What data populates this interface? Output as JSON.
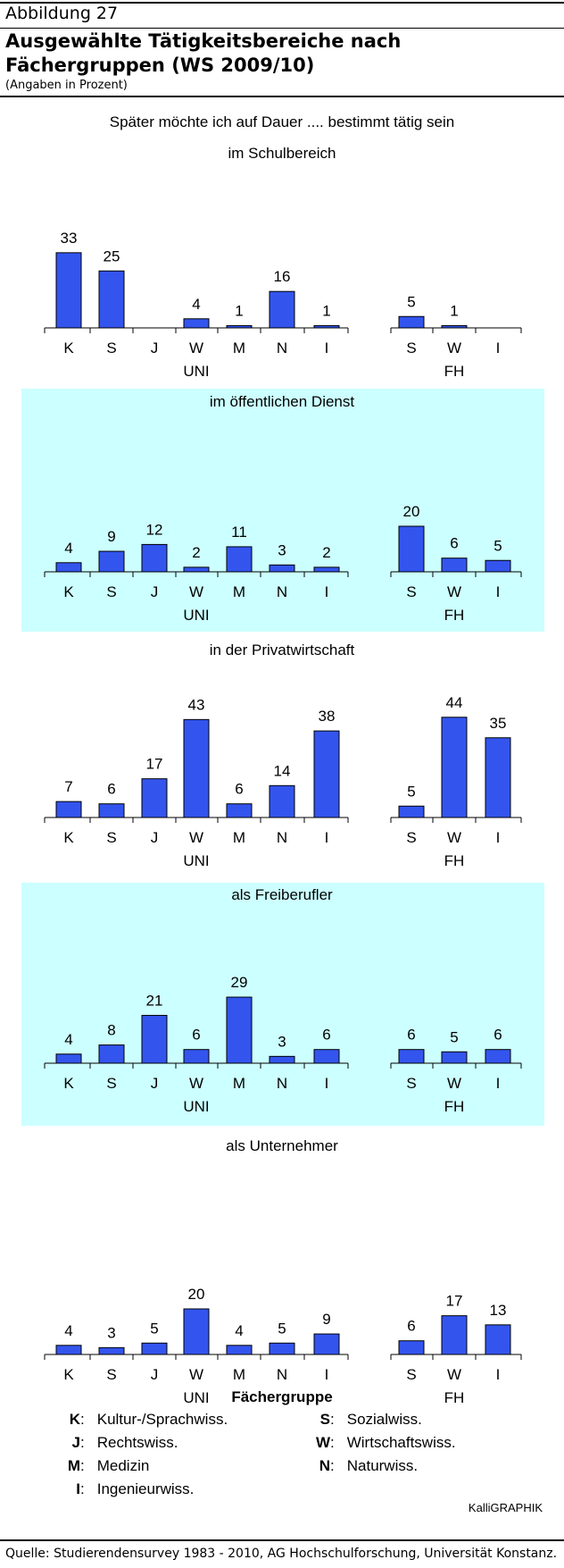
{
  "header": {
    "figure_label": "Abbildung 27",
    "title": "Ausgewählte Tätigkeitsbereiche nach Fächergruppen (WS 2009/10)",
    "subtitle": "(Angaben in Prozent)"
  },
  "suptitle": "Später möchte ich auf Dauer .... bestimmt tätig sein",
  "chart_data": [
    {
      "type": "bar",
      "title": "im Schulbereich",
      "categories": [
        "K",
        "S",
        "J",
        "W",
        "M",
        "N",
        "I",
        "S",
        "W",
        "I"
      ],
      "groups": [
        {
          "label": "UNI",
          "from": 0,
          "to": 6
        },
        {
          "label": "FH",
          "from": 7,
          "to": 9
        }
      ],
      "values": [
        33,
        25,
        null,
        4,
        1,
        16,
        1,
        5,
        1,
        null
      ],
      "value_labels": [
        "33",
        "25",
        "",
        "4",
        "1",
        "16",
        "1",
        "5",
        "1",
        ""
      ],
      "highlighted_background": false
    },
    {
      "type": "bar",
      "title": "im öffentlichen Dienst",
      "categories": [
        "K",
        "S",
        "J",
        "W",
        "M",
        "N",
        "I",
        "S",
        "W",
        "I"
      ],
      "groups": [
        {
          "label": "UNI",
          "from": 0,
          "to": 6
        },
        {
          "label": "FH",
          "from": 7,
          "to": 9
        }
      ],
      "values": [
        4,
        9,
        12,
        2,
        11,
        3,
        2,
        20,
        6,
        5
      ],
      "value_labels": [
        "4",
        "9",
        "12",
        "2",
        "11",
        "3",
        "2",
        "20",
        "6",
        "5"
      ],
      "highlighted_background": true
    },
    {
      "type": "bar",
      "title": "in der Privatwirtschaft",
      "categories": [
        "K",
        "S",
        "J",
        "W",
        "M",
        "N",
        "I",
        "S",
        "W",
        "I"
      ],
      "groups": [
        {
          "label": "UNI",
          "from": 0,
          "to": 6
        },
        {
          "label": "FH",
          "from": 7,
          "to": 9
        }
      ],
      "values": [
        7,
        6,
        17,
        43,
        6,
        14,
        38,
        5,
        44,
        35
      ],
      "value_labels": [
        "7",
        "6",
        "17",
        "43",
        "6",
        "14",
        "38",
        "5",
        "44",
        "35"
      ],
      "highlighted_background": false
    },
    {
      "type": "bar",
      "title": "als Freiberufler",
      "categories": [
        "K",
        "S",
        "J",
        "W",
        "M",
        "N",
        "I",
        "S",
        "W",
        "I"
      ],
      "groups": [
        {
          "label": "UNI",
          "from": 0,
          "to": 6
        },
        {
          "label": "FH",
          "from": 7,
          "to": 9
        }
      ],
      "values": [
        4,
        8,
        21,
        6,
        29,
        3,
        6,
        6,
        5,
        6
      ],
      "value_labels": [
        "4",
        "8",
        "21",
        "6",
        "29",
        "3",
        "6",
        "6",
        "5",
        "6"
      ],
      "highlighted_background": true
    },
    {
      "type": "bar",
      "title": "als Unternehmer",
      "categories": [
        "K",
        "S",
        "J",
        "W",
        "M",
        "N",
        "I",
        "S",
        "W",
        "I"
      ],
      "groups": [
        {
          "label": "UNI",
          "from": 0,
          "to": 6
        },
        {
          "label": "FH",
          "from": 7,
          "to": 9
        }
      ],
      "values": [
        4,
        3,
        5,
        20,
        4,
        5,
        9,
        6,
        17,
        13
      ],
      "value_labels": [
        "4",
        "3",
        "5",
        "20",
        "4",
        "5",
        "9",
        "6",
        "17",
        "13"
      ],
      "highlighted_background": false
    }
  ],
  "legend": {
    "title": "Fächergruppe",
    "left": [
      {
        "key": "K",
        "label": "Kultur-/Sprachwiss."
      },
      {
        "key": "J",
        "label": "Rechtswiss."
      },
      {
        "key": "M",
        "label": "Medizin"
      },
      {
        "key": "I",
        "label": "Ingenieurwiss."
      }
    ],
    "right": [
      {
        "key": "S",
        "label": "Sozialwiss."
      },
      {
        "key": "W",
        "label": "Wirtschaftswiss."
      },
      {
        "key": "N",
        "label": "Naturwiss."
      }
    ]
  },
  "brand": "KalliGRAPHIK",
  "source": "Quelle: Studierendensurvey 1983 - 2010, AG Hochschulforschung, Universität Konstanz.",
  "colors": {
    "bar_fill": "#3355ee",
    "bar_stroke": "#000000",
    "highlight_background": "#ccffff"
  }
}
